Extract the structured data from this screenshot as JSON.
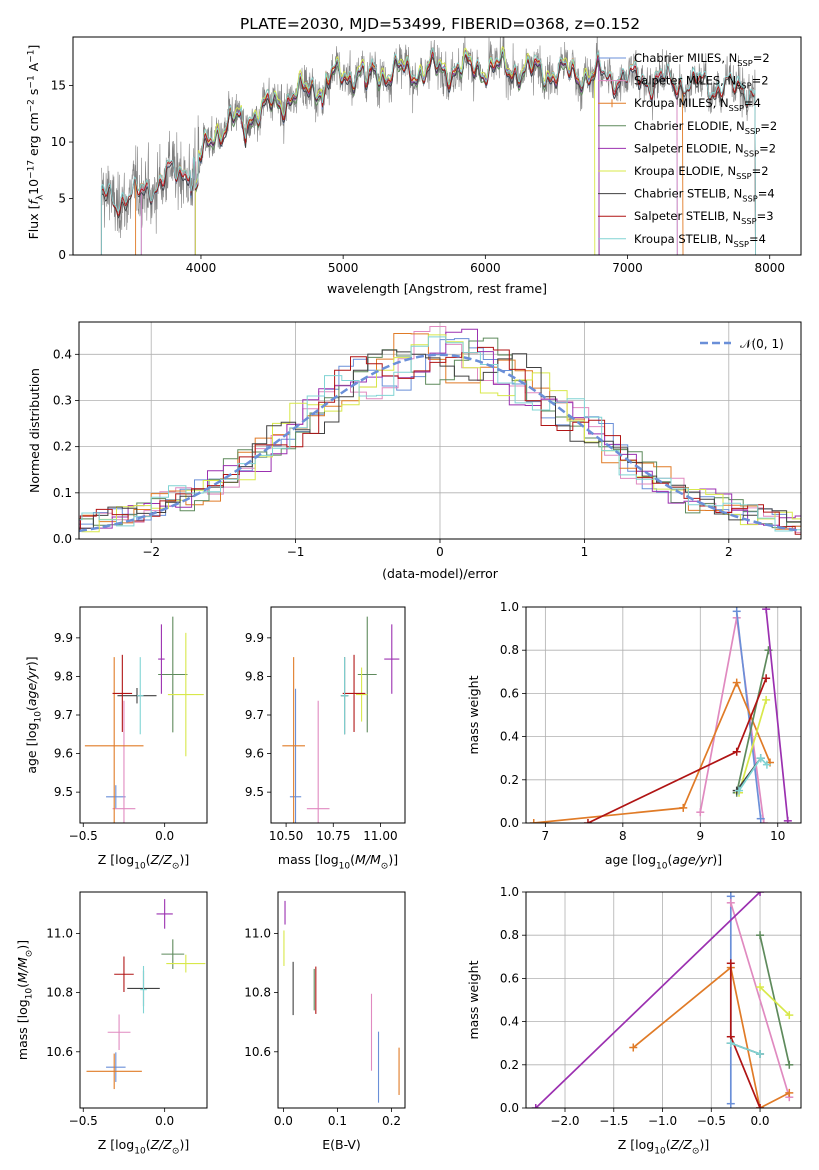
{
  "page": {
    "suptitle": "PLATE=2030, MJD=53499, FIBERID=0368, z=0.152"
  },
  "chart_data": [
    {
      "id": "spectrum",
      "type": "line",
      "xlabel": "wavelength [Angstrom, rest frame]",
      "ylabel": "Flux [f_λ 10^-17 erg cm^-2 s^-1 A^-1]",
      "xlim": [
        3100,
        8220
      ],
      "ylim": [
        0,
        19.3
      ],
      "xticks": [
        4000,
        5000,
        6000,
        7000,
        8000
      ],
      "yticks": [
        0,
        5,
        10,
        15
      ],
      "grid": false,
      "legend_position": "top-right",
      "data_series": {
        "name": "data",
        "color": "#808080",
        "x_range": [
          3300,
          7900
        ]
      },
      "series": [
        {
          "name": "Chabrier MILES, N_SSP=2",
          "color": "#6a8fd8",
          "x_range": [
            3580,
            7350
          ]
        },
        {
          "name": "Salpeter MILES, N_SSP=2",
          "color": "#e08ac0",
          "x_range": [
            3580,
            7350
          ]
        },
        {
          "name": "Kroupa MILES, N_SSP=4",
          "color": "#e07b27",
          "x_range": [
            3540,
            7390
          ]
        },
        {
          "name": "Chabrier ELODIE, N_SSP=2",
          "color": "#5e8a5c",
          "x_range": [
            3960,
            6800
          ]
        },
        {
          "name": "Salpeter ELODIE, N_SSP=2",
          "color": "#9b30b0",
          "x_range": [
            3960,
            6800
          ]
        },
        {
          "name": "Kroupa ELODIE, N_SSP=2",
          "color": "#d8e84a",
          "x_range": [
            3960,
            6770
          ]
        },
        {
          "name": "Chabrier STELIB, N_SSP=4",
          "color": "#404040",
          "x_range": [
            3300,
            7900
          ]
        },
        {
          "name": "Salpeter STELIB, N_SSP=3",
          "color": "#b01414",
          "x_range": [
            3300,
            7900
          ]
        },
        {
          "name": "Kroupa STELIB, N_SSP=4",
          "color": "#80d4d4",
          "x_range": [
            3300,
            7900
          ]
        }
      ]
    },
    {
      "id": "residual-histogram",
      "type": "line",
      "xlabel": "(data-model)/error",
      "ylabel": "Normed distribution",
      "xlim": [
        -2.5,
        2.5
      ],
      "ylim": [
        0,
        0.47
      ],
      "xticks": [
        -2,
        -1,
        0,
        1,
        2
      ],
      "yticks": [
        0.0,
        0.1,
        0.2,
        0.3,
        0.4
      ],
      "grid": true,
      "legend": "𝒩(0, 1)",
      "gaussian_color": "#6a8fd8"
    },
    {
      "id": "age-vs-Z",
      "type": "scatter",
      "xlabel": "Z [log10(Z/Z⊙)]",
      "ylabel": "age  [log10(age/yr)]",
      "xlim": [
        -0.52,
        0.26
      ],
      "ylim": [
        9.42,
        9.98
      ],
      "xticks": [
        -0.5,
        0.0
      ],
      "yticks": [
        9.5,
        9.6,
        9.7,
        9.8,
        9.9
      ],
      "points": [
        {
          "x": -0.3,
          "y": 9.488,
          "xerr": 0.06,
          "yerr": 0.03,
          "color": "#6a8fd8"
        },
        {
          "x": -0.25,
          "y": 9.457,
          "xerr": 0.07,
          "yerr": 0.28,
          "color": "#e08ac0"
        },
        {
          "x": -0.31,
          "y": 9.62,
          "xerr": 0.18,
          "yerr": 0.23,
          "color": "#e07b27"
        },
        {
          "x": 0.05,
          "y": 9.805,
          "xerr": 0.09,
          "yerr": 0.15,
          "color": "#5e8a5c"
        },
        {
          "x": -0.02,
          "y": 9.845,
          "xerr": 0.02,
          "yerr": 0.09,
          "color": "#9b30b0"
        },
        {
          "x": 0.13,
          "y": 9.753,
          "xerr": 0.11,
          "yerr": 0.16,
          "color": "#d8e84a"
        },
        {
          "x": -0.17,
          "y": 9.75,
          "xerr": 0.12,
          "yerr": 0.02,
          "color": "#404040"
        },
        {
          "x": -0.26,
          "y": 9.756,
          "xerr": 0.06,
          "yerr": 0.1,
          "color": "#b01414"
        },
        {
          "x": -0.15,
          "y": 9.75,
          "xerr": 0.02,
          "yerr": 0.1,
          "color": "#80d4d4"
        }
      ]
    },
    {
      "id": "age-vs-mass",
      "type": "scatter",
      "xlabel": "mass [log10(M/M⊙)]",
      "xlim": [
        10.42,
        11.13
      ],
      "ylim": [
        9.42,
        9.98
      ],
      "xticks": [
        10.5,
        10.75,
        11.0
      ],
      "yticks": [
        9.5,
        9.6,
        9.7,
        9.8,
        9.9
      ],
      "points": [
        {
          "x": 10.55,
          "y": 9.488,
          "xerr": 0.03,
          "yerr": 0.28,
          "color": "#6a8fd8"
        },
        {
          "x": 10.67,
          "y": 9.457,
          "xerr": 0.06,
          "yerr": 0.28,
          "color": "#e08ac0"
        },
        {
          "x": 10.54,
          "y": 9.62,
          "xerr": 0.06,
          "yerr": 0.23,
          "color": "#e07b27"
        },
        {
          "x": 10.93,
          "y": 9.805,
          "xerr": 0.05,
          "yerr": 0.15,
          "color": "#5e8a5c"
        },
        {
          "x": 11.06,
          "y": 9.845,
          "xerr": 0.04,
          "yerr": 0.09,
          "color": "#9b30b0"
        },
        {
          "x": 10.9,
          "y": 9.753,
          "xerr": 0.03,
          "yerr": 0.07,
          "color": "#d8e84a"
        },
        {
          "x": 10.81,
          "y": 9.75,
          "xerr": 0.02,
          "yerr": 0.1,
          "color": "#404040"
        },
        {
          "x": 10.86,
          "y": 9.756,
          "xerr": 0.06,
          "yerr": 0.1,
          "color": "#b01414"
        },
        {
          "x": 10.81,
          "y": 9.75,
          "xerr": 0.02,
          "yerr": 0.1,
          "color": "#80d4d4"
        }
      ]
    },
    {
      "id": "mass-weight-vs-age",
      "type": "line",
      "xlabel": "age  [log10(age/yr)]",
      "ylabel": "mass weight",
      "xlim": [
        6.75,
        10.3
      ],
      "ylim": [
        0,
        1.0
      ],
      "xticks": [
        7,
        8,
        9,
        10
      ],
      "yticks": [
        0.0,
        0.2,
        0.4,
        0.6,
        0.8,
        1.0
      ],
      "grid": true,
      "series": [
        {
          "color": "#e08ac0",
          "x": [
            9.0,
            9.47,
            9.82
          ],
          "y": [
            0.05,
            0.95,
            0.0
          ]
        },
        {
          "color": "#6a8fd8",
          "x": [
            9.47,
            9.78
          ],
          "y": [
            0.98,
            0.02
          ]
        },
        {
          "color": "#e07b27",
          "x": [
            6.85,
            8.78,
            9.47,
            9.9
          ],
          "y": [
            0.0,
            0.07,
            0.65,
            0.28
          ]
        },
        {
          "color": "#5e8a5c",
          "x": [
            9.47,
            9.88
          ],
          "y": [
            0.14,
            0.8
          ]
        },
        {
          "color": "#9b30b0",
          "x": [
            9.85,
            10.13
          ],
          "y": [
            0.99,
            0.01
          ]
        },
        {
          "color": "#d8e84a",
          "x": [
            9.5,
            9.85
          ],
          "y": [
            0.14,
            0.57
          ]
        },
        {
          "color": "#404040",
          "x": [
            9.47,
            9.78
          ],
          "y": [
            0.15,
            0.3
          ]
        },
        {
          "color": "#b01414",
          "x": [
            7.55,
            9.47,
            9.85
          ],
          "y": [
            0.0,
            0.33,
            0.67
          ]
        },
        {
          "color": "#80d4d4",
          "x": [
            9.5,
            9.78,
            9.86
          ],
          "y": [
            0.15,
            0.3,
            0.27
          ]
        }
      ]
    },
    {
      "id": "mass-vs-Z",
      "type": "scatter",
      "xlabel": "Z [log10(Z/Z⊙)]",
      "ylabel": "mass [log10(M/M⊙)]",
      "xlim": [
        -0.52,
        0.26
      ],
      "ylim": [
        10.41,
        11.14
      ],
      "xticks": [
        -0.5,
        0.0
      ],
      "yticks": [
        10.6,
        10.8,
        11.0
      ],
      "points": [
        {
          "x": -0.3,
          "y": 10.548,
          "xerr": 0.06,
          "yerr": 0.05,
          "color": "#6a8fd8"
        },
        {
          "x": -0.28,
          "y": 10.666,
          "xerr": 0.07,
          "yerr": 0.06,
          "color": "#e08ac0"
        },
        {
          "x": -0.31,
          "y": 10.534,
          "xerr": 0.17,
          "yerr": 0.06,
          "color": "#e07b27"
        },
        {
          "x": 0.05,
          "y": 10.93,
          "xerr": 0.07,
          "yerr": 0.05,
          "color": "#5e8a5c"
        },
        {
          "x": 0.0,
          "y": 11.066,
          "xerr": 0.05,
          "yerr": 0.05,
          "color": "#9b30b0"
        },
        {
          "x": 0.13,
          "y": 10.898,
          "xerr": 0.12,
          "yerr": 0.03,
          "color": "#d8e84a"
        },
        {
          "x": -0.13,
          "y": 10.814,
          "xerr": 0.1,
          "yerr": 0.06,
          "color": "#404040"
        },
        {
          "x": -0.25,
          "y": 10.862,
          "xerr": 0.06,
          "yerr": 0.06,
          "color": "#b01414"
        },
        {
          "x": -0.13,
          "y": 10.81,
          "xerr": 0.02,
          "yerr": 0.08,
          "color": "#80d4d4"
        }
      ]
    },
    {
      "id": "mass-vs-ebv",
      "type": "scatter",
      "xlabel": "E(B-V)",
      "xlim": [
        -0.01,
        0.225
      ],
      "ylim": [
        10.41,
        11.14
      ],
      "xticks": [
        0.0,
        0.1,
        0.2
      ],
      "yticks": [
        10.6,
        10.8,
        11.0
      ],
      "points": [
        {
          "x": 0.176,
          "y": 10.548,
          "yerr": 0.12,
          "color": "#6a8fd8"
        },
        {
          "x": 0.163,
          "y": 10.666,
          "yerr": 0.13,
          "color": "#e08ac0"
        },
        {
          "x": 0.214,
          "y": 10.534,
          "yerr": 0.08,
          "color": "#e07b27"
        },
        {
          "x": 0.003,
          "y": 11.07,
          "yerr": 0.04,
          "color": "#9b30b0"
        },
        {
          "x": 0.001,
          "y": 10.95,
          "yerr": 0.06,
          "color": "#d8e84a"
        },
        {
          "x": 0.018,
          "y": 10.814,
          "yerr": 0.09,
          "color": "#404040"
        },
        {
          "x": 0.06,
          "y": 10.808,
          "yerr": 0.08,
          "color": "#b01414"
        },
        {
          "x": 0.057,
          "y": 10.81,
          "yerr": 0.07,
          "color": "#5e8a5c"
        }
      ]
    },
    {
      "id": "mass-weight-vs-Z",
      "type": "line",
      "xlabel": "Z [log10(Z/Z⊙)]",
      "ylabel": "mass weight",
      "xlim": [
        -2.4,
        0.42
      ],
      "ylim": [
        0,
        1.0
      ],
      "xticks": [
        -2.0,
        -1.5,
        -1.0,
        -0.5,
        0.0
      ],
      "yticks": [
        0.0,
        0.2,
        0.4,
        0.6,
        0.8,
        1.0
      ],
      "grid": true,
      "series": [
        {
          "color": "#6a8fd8",
          "x": [
            -0.3,
            -0.3
          ],
          "y": [
            0.98,
            0.02
          ]
        },
        {
          "color": "#e08ac0",
          "x": [
            -0.3,
            0.3
          ],
          "y": [
            0.95,
            0.05
          ]
        },
        {
          "color": "#e07b27",
          "x": [
            -1.3,
            -0.3,
            0.0,
            0.3
          ],
          "y": [
            0.28,
            0.65,
            0.0,
            0.07
          ]
        },
        {
          "color": "#5e8a5c",
          "x": [
            0.0,
            0.3
          ],
          "y": [
            0.8,
            0.2
          ]
        },
        {
          "color": "#9b30b0",
          "x": [
            -2.3,
            0.0
          ],
          "y": [
            0.0,
            1.0
          ]
        },
        {
          "color": "#d8e84a",
          "x": [
            0.0,
            0.3
          ],
          "y": [
            0.56,
            0.43
          ]
        },
        {
          "color": "#404040",
          "x": [
            -0.3,
            0.0
          ],
          "y": [
            0.3,
            0.25
          ]
        },
        {
          "color": "#b01414",
          "x": [
            -0.3,
            -0.3,
            0.0
          ],
          "y": [
            0.67,
            0.33,
            0.0
          ]
        },
        {
          "color": "#80d4d4",
          "x": [
            -0.3,
            0.0
          ],
          "y": [
            0.3,
            0.25
          ]
        }
      ]
    }
  ]
}
